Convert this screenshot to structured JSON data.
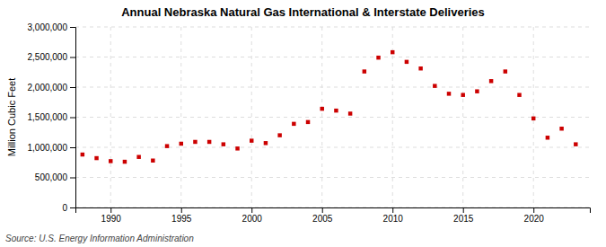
{
  "chart_data": {
    "type": "scatter",
    "title": "Annual Nebraska Natural Gas International & Interstate Deliveries",
    "ylabel": "Million Cubic Feet",
    "source": "Source: U.S. Energy Information Administration",
    "x": [
      1988,
      1989,
      1990,
      1991,
      1992,
      1993,
      1994,
      1995,
      1996,
      1997,
      1998,
      1999,
      2000,
      2001,
      2002,
      2003,
      2004,
      2005,
      2006,
      2007,
      2008,
      2009,
      2010,
      2011,
      2012,
      2013,
      2014,
      2015,
      2016,
      2017,
      2018,
      2019,
      2020,
      2021,
      2022,
      2023
    ],
    "values": [
      880000,
      820000,
      770000,
      760000,
      840000,
      780000,
      1020000,
      1060000,
      1090000,
      1090000,
      1050000,
      980000,
      1110000,
      1070000,
      1200000,
      1390000,
      1420000,
      1640000,
      1610000,
      1560000,
      2260000,
      2490000,
      2580000,
      2420000,
      2310000,
      2020000,
      1890000,
      1870000,
      1930000,
      2100000,
      2260000,
      1870000,
      1480000,
      1160000,
      1310000,
      1050000
    ],
    "color": "#cc0000",
    "marker": "square",
    "xlim": [
      1987.5,
      2024
    ],
    "xticks": [
      1990,
      1995,
      2000,
      2005,
      2010,
      2015,
      2020
    ],
    "ylim": [
      0,
      3000000
    ],
    "yticks": [
      0,
      {
        "value": 500000,
        "label": "500,000"
      },
      {
        "value": 1000000,
        "label": "1,000,000"
      },
      {
        "value": 1500000,
        "label": "1,500,000"
      },
      {
        "value": 2000000,
        "label": "2,000,000"
      },
      {
        "value": 2500000,
        "label": "2,500,000"
      },
      {
        "value": 3000000,
        "label": "3,000,000"
      }
    ],
    "grid": true
  }
}
